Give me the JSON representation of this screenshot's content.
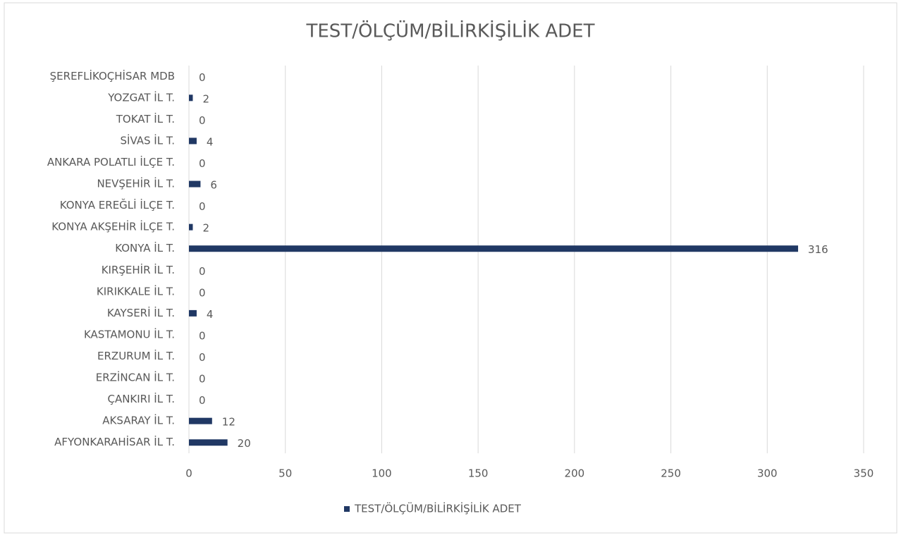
{
  "chart_data": {
    "type": "bar",
    "orientation": "horizontal",
    "title": "TEST/ÖLÇÜM/BİLİRKİŞİLİK ADET",
    "categories": [
      "ŞEREFLİKOÇHİSAR MDB",
      "YOZGAT İL T.",
      "TOKAT İL T.",
      "SİVAS İL T.",
      "ANKARA POLATLI İLÇE T.",
      "NEVŞEHİR İL T.",
      "KONYA EREĞLİ İLÇE T.",
      "KONYA AKŞEHİR İLÇE T.",
      "KONYA İL T.",
      "KIRŞEHİR İL T.",
      "KIRIKKALE İL T.",
      "KAYSERİ İL T.",
      "KASTAMONU İL T.",
      "ERZURUM İL T.",
      "ERZİNCAN İL T.",
      "ÇANKIRI İL T.",
      "AKSARAY İL T.",
      "AFYONKARAHİSAR İL T."
    ],
    "series": [
      {
        "name": "TEST/ÖLÇÜM/BİLİRKİŞİLİK ADET",
        "color": "#203864",
        "values": [
          0,
          2,
          0,
          4,
          0,
          6,
          0,
          2,
          316,
          0,
          0,
          4,
          0,
          0,
          0,
          0,
          12,
          20
        ]
      }
    ],
    "xlim": [
      0,
      350
    ],
    "xticks": [
      0,
      50,
      100,
      150,
      200,
      250,
      300,
      350
    ],
    "grid": true,
    "legend": "bottom"
  }
}
